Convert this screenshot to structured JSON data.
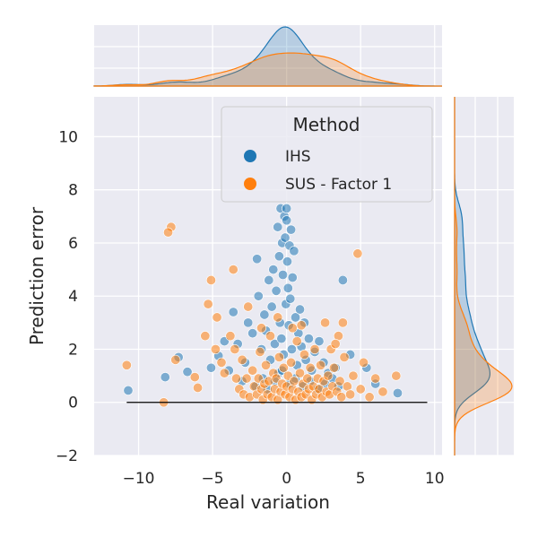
{
  "chart_data": {
    "type": "scatter",
    "xlabel": "Real variation",
    "ylabel": "Prediction error",
    "xlim": [
      -13,
      10.5
    ],
    "ylim": [
      -2,
      11.5
    ],
    "x_ticks": [
      -10,
      -5,
      0,
      5,
      10
    ],
    "y_ticks": [
      -2,
      0,
      2,
      4,
      6,
      8,
      10
    ],
    "grid": true,
    "legend": {
      "title": "Method",
      "placement": "top-right",
      "entries": [
        {
          "label": "IHS",
          "color": "#1f77b4"
        },
        {
          "label": "SUS - Factor 1",
          "color": "#ff7f0e"
        }
      ]
    },
    "reference_line": {
      "y": 0,
      "x_range": [
        -10.8,
        9.5
      ],
      "color": "#000000"
    },
    "marginals": {
      "top": "kde_density_of_real_variation",
      "right": "kde_density_of_prediction_error"
    },
    "series": [
      {
        "name": "IHS",
        "color": "#1f77b4",
        "points": [
          [
            -10.7,
            0.45
          ],
          [
            -8.2,
            0.95
          ],
          [
            -7.3,
            1.7
          ],
          [
            -6.7,
            1.15
          ],
          [
            -5.1,
            1.3
          ],
          [
            -4.6,
            1.75
          ],
          [
            -4.2,
            2.3
          ],
          [
            -3.9,
            1.2
          ],
          [
            -3.6,
            3.4
          ],
          [
            -3.3,
            2.2
          ],
          [
            -2.8,
            1.5
          ],
          [
            -2.6,
            3.0
          ],
          [
            -2.3,
            2.6
          ],
          [
            -2.0,
            5.4
          ],
          [
            -1.9,
            4.0
          ],
          [
            -1.7,
            2.0
          ],
          [
            -1.5,
            3.3
          ],
          [
            -1.4,
            2.7
          ],
          [
            -1.2,
            4.6
          ],
          [
            -1.1,
            1.6
          ],
          [
            -1.0,
            3.6
          ],
          [
            -0.9,
            5.0
          ],
          [
            -0.8,
            2.2
          ],
          [
            -0.7,
            4.2
          ],
          [
            -0.6,
            6.6
          ],
          [
            -0.55,
            1.1
          ],
          [
            -0.5,
            5.5
          ],
          [
            -0.45,
            3.0
          ],
          [
            -0.4,
            7.3
          ],
          [
            -0.35,
            2.4
          ],
          [
            -0.3,
            6.0
          ],
          [
            -0.25,
            4.8
          ],
          [
            -0.2,
            1.8
          ],
          [
            -0.15,
            7.0
          ],
          [
            -0.1,
            6.2
          ],
          [
            -0.05,
            3.7
          ],
          [
            0.0,
            6.85
          ],
          [
            0.0,
            7.3
          ],
          [
            0.05,
            5.3
          ],
          [
            0.1,
            4.3
          ],
          [
            0.15,
            2.9
          ],
          [
            0.2,
            5.9
          ],
          [
            0.25,
            3.9
          ],
          [
            0.3,
            6.5
          ],
          [
            0.35,
            2.0
          ],
          [
            0.4,
            4.7
          ],
          [
            0.5,
            5.7
          ],
          [
            0.6,
            3.2
          ],
          [
            0.7,
            1.4
          ],
          [
            0.8,
            2.6
          ],
          [
            0.9,
            3.5
          ],
          [
            1.0,
            2.1
          ],
          [
            1.2,
            3.0
          ],
          [
            1.3,
            1.6
          ],
          [
            1.5,
            2.4
          ],
          [
            1.7,
            1.2
          ],
          [
            1.9,
            1.9
          ],
          [
            2.2,
            2.3
          ],
          [
            2.5,
            1.5
          ],
          [
            2.8,
            1.1
          ],
          [
            3.1,
            0.9
          ],
          [
            3.3,
            1.3
          ],
          [
            3.8,
            4.6
          ],
          [
            4.3,
            1.8
          ],
          [
            5.4,
            1.3
          ],
          [
            6.0,
            0.7
          ],
          [
            7.5,
            0.35
          ],
          [
            -2.1,
            0.6
          ],
          [
            -1.6,
            0.9
          ],
          [
            -1.3,
            0.5
          ],
          [
            -0.8,
            0.8
          ],
          [
            -0.3,
            1.2
          ],
          [
            0.2,
            0.7
          ],
          [
            0.6,
            0.9
          ],
          [
            1.1,
            0.6
          ],
          [
            1.6,
            0.8
          ],
          [
            2.1,
            0.5
          ],
          [
            2.6,
            0.7
          ],
          [
            -3.0,
            0.8
          ],
          [
            3.5,
            0.6
          ]
        ]
      },
      {
        "name": "SUS - Factor 1",
        "color": "#ff7f0e",
        "points": [
          [
            -10.8,
            1.4
          ],
          [
            -8.3,
            0.0
          ],
          [
            -7.8,
            6.6
          ],
          [
            -8.0,
            6.4
          ],
          [
            -7.5,
            1.6
          ],
          [
            -6.2,
            0.95
          ],
          [
            -6.0,
            0.55
          ],
          [
            -5.5,
            2.5
          ],
          [
            -5.3,
            3.7
          ],
          [
            -5.1,
            4.6
          ],
          [
            -4.8,
            2.0
          ],
          [
            -4.7,
            3.2
          ],
          [
            -4.4,
            1.5
          ],
          [
            -3.6,
            5.0
          ],
          [
            -3.4,
            0.9
          ],
          [
            -3.2,
            0.5
          ],
          [
            -3.0,
            1.6
          ],
          [
            -2.9,
            0.3
          ],
          [
            -2.7,
            0.9
          ],
          [
            -2.5,
            0.2
          ],
          [
            -2.3,
            1.2
          ],
          [
            -2.2,
            0.6
          ],
          [
            -2.0,
            0.3
          ],
          [
            -1.9,
            0.9
          ],
          [
            -1.8,
            1.9
          ],
          [
            -1.7,
            0.5
          ],
          [
            -1.6,
            0.1
          ],
          [
            -1.5,
            0.7
          ],
          [
            -1.4,
            1.4
          ],
          [
            -1.3,
            0.3
          ],
          [
            -1.2,
            0.8
          ],
          [
            -1.1,
            2.5
          ],
          [
            -1.0,
            0.2
          ],
          [
            -0.9,
            1.1
          ],
          [
            -0.8,
            0.5
          ],
          [
            -0.7,
            0.9
          ],
          [
            -0.6,
            0.1
          ],
          [
            -0.5,
            1.7
          ],
          [
            -0.4,
            0.4
          ],
          [
            -0.3,
            0.7
          ],
          [
            -0.2,
            1.3
          ],
          [
            -0.1,
            0.3
          ],
          [
            0.0,
            0.6
          ],
          [
            0.1,
            1.0
          ],
          [
            0.2,
            0.2
          ],
          [
            0.3,
            1.5
          ],
          [
            0.4,
            0.5
          ],
          [
            0.5,
            0.8
          ],
          [
            0.6,
            0.1
          ],
          [
            0.7,
            2.3
          ],
          [
            0.8,
            0.4
          ],
          [
            0.9,
            1.1
          ],
          [
            1.0,
            0.2
          ],
          [
            1.1,
            0.7
          ],
          [
            1.2,
            1.8
          ],
          [
            1.3,
            0.3
          ],
          [
            1.4,
            0.9
          ],
          [
            1.5,
            0.5
          ],
          [
            1.6,
            1.3
          ],
          [
            1.7,
            0.1
          ],
          [
            1.8,
            0.6
          ],
          [
            1.9,
            2.0
          ],
          [
            2.0,
            0.3
          ],
          [
            2.1,
            0.9
          ],
          [
            2.2,
            0.5
          ],
          [
            2.3,
            1.4
          ],
          [
            2.4,
            0.2
          ],
          [
            2.5,
            0.8
          ],
          [
            2.6,
            3.0
          ],
          [
            2.7,
            0.4
          ],
          [
            2.8,
            1.0
          ],
          [
            2.9,
            0.3
          ],
          [
            3.0,
            2.0
          ],
          [
            3.1,
            0.6
          ],
          [
            3.2,
            1.3
          ],
          [
            3.4,
            0.4
          ],
          [
            3.5,
            2.5
          ],
          [
            3.6,
            0.8
          ],
          [
            3.7,
            0.2
          ],
          [
            3.9,
            1.7
          ],
          [
            4.1,
            0.6
          ],
          [
            4.3,
            0.3
          ],
          [
            4.5,
            1.0
          ],
          [
            4.8,
            5.6
          ],
          [
            5.0,
            0.5
          ],
          [
            5.2,
            1.5
          ],
          [
            5.6,
            0.2
          ],
          [
            6.0,
            0.9
          ],
          [
            6.5,
            0.4
          ],
          [
            7.4,
            1.0
          ],
          [
            -3.8,
            2.5
          ],
          [
            -2.6,
            3.6
          ],
          [
            -1.7,
            2.8
          ],
          [
            -0.6,
            3.2
          ],
          [
            0.4,
            2.8
          ],
          [
            1.0,
            2.9
          ],
          [
            3.3,
            2.2
          ],
          [
            3.8,
            3.0
          ],
          [
            -4.2,
            1.1
          ],
          [
            -3.5,
            2.0
          ]
        ]
      }
    ]
  }
}
